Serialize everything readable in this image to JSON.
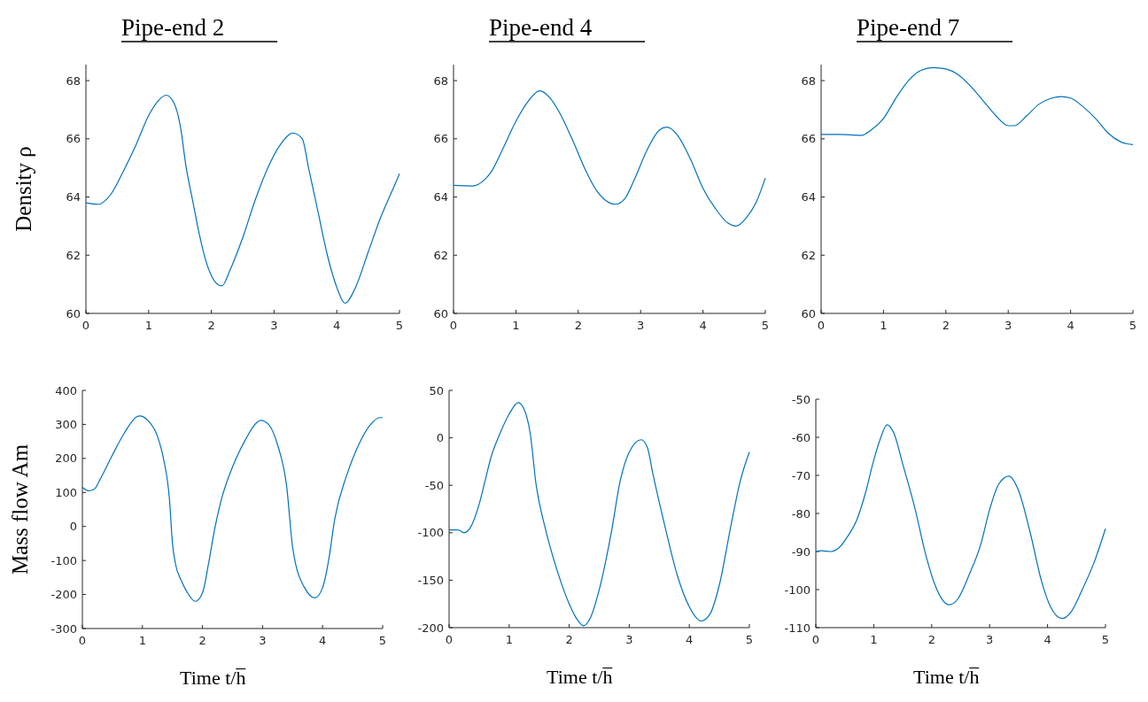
{
  "chart_data": [
    {
      "type": "line",
      "title": "Pipe-end 2",
      "ylabel": "Density ρ",
      "xlim": [
        0,
        5
      ],
      "xticks": [
        0,
        1,
        2,
        3,
        4,
        5
      ],
      "ylim": [
        60,
        68.55
      ],
      "yticks": [
        60,
        62,
        64,
        66,
        68
      ],
      "grid": false,
      "series": [
        {
          "color": "#0072bd",
          "x": [
            0,
            0.2,
            0.4,
            0.6,
            0.8,
            1.0,
            1.15,
            1.28,
            1.4,
            1.5,
            1.6,
            1.7,
            1.8,
            1.9,
            2.0,
            2.1,
            2.17,
            2.3,
            2.5,
            2.7,
            2.9,
            3.1,
            3.3,
            3.45,
            3.55,
            3.7,
            3.85,
            4.0,
            4.13,
            4.3,
            4.5,
            4.7,
            4.9,
            5.0
          ],
          "values": [
            63.8,
            63.75,
            64.1,
            64.9,
            65.8,
            66.8,
            67.3,
            67.5,
            67.25,
            66.5,
            65.0,
            63.9,
            62.8,
            61.9,
            61.3,
            61.0,
            60.95,
            61.5,
            62.6,
            63.9,
            65.0,
            65.8,
            66.2,
            66.0,
            65.0,
            63.5,
            62.0,
            60.9,
            60.35,
            60.9,
            62.1,
            63.3,
            64.3,
            64.8
          ]
        }
      ]
    },
    {
      "type": "line",
      "title": "Pipe-end 4",
      "xlim": [
        0,
        5
      ],
      "xticks": [
        0,
        1,
        2,
        3,
        4,
        5
      ],
      "ylim": [
        60,
        68.55
      ],
      "yticks": [
        60,
        62,
        64,
        66,
        68
      ],
      "grid": false,
      "series": [
        {
          "color": "#0072bd",
          "x": [
            0,
            0.3,
            0.5,
            0.6,
            0.8,
            1.0,
            1.2,
            1.38,
            1.55,
            1.7,
            1.9,
            2.1,
            2.3,
            2.5,
            2.6,
            2.75,
            2.9,
            3.1,
            3.3,
            3.42,
            3.6,
            3.8,
            4.0,
            4.2,
            4.4,
            4.53,
            4.7,
            4.85,
            5.0
          ],
          "values": [
            64.4,
            64.38,
            64.6,
            64.85,
            65.7,
            66.6,
            67.3,
            67.65,
            67.4,
            66.9,
            66.0,
            65.0,
            64.2,
            63.8,
            63.75,
            63.95,
            64.6,
            65.6,
            66.3,
            66.4,
            66.1,
            65.3,
            64.3,
            63.6,
            63.1,
            63.0,
            63.3,
            63.8,
            64.65
          ]
        }
      ]
    },
    {
      "type": "line",
      "title": "Pipe-end 7",
      "xlim": [
        0,
        5
      ],
      "xticks": [
        0,
        1,
        2,
        3,
        4,
        5
      ],
      "ylim": [
        60,
        68.55
      ],
      "yticks": [
        60,
        62,
        64,
        66,
        68
      ],
      "grid": false,
      "series": [
        {
          "color": "#0072bd",
          "x": [
            0,
            0.3,
            0.65,
            0.8,
            1.0,
            1.2,
            1.4,
            1.6,
            1.8,
            2.0,
            2.2,
            2.4,
            2.6,
            2.8,
            3.0,
            3.1,
            3.3,
            3.5,
            3.7,
            3.85,
            4.0,
            4.2,
            4.4,
            4.6,
            4.8,
            5.0
          ],
          "values": [
            66.15,
            66.15,
            66.12,
            66.3,
            66.7,
            67.4,
            68.0,
            68.35,
            68.45,
            68.4,
            68.2,
            67.8,
            67.3,
            66.8,
            66.45,
            66.45,
            66.8,
            67.2,
            67.4,
            67.45,
            67.4,
            67.1,
            66.7,
            66.2,
            65.9,
            65.8
          ]
        }
      ]
    },
    {
      "type": "line",
      "ylabel": "Mass flow Am",
      "xlabel": "Time t/h̅",
      "xlim": [
        0,
        5
      ],
      "xticks": [
        0,
        1,
        2,
        3,
        4,
        5
      ],
      "ylim": [
        -300,
        400
      ],
      "yticks": [
        -300,
        -200,
        -100,
        0,
        100,
        200,
        300,
        400
      ],
      "grid": false,
      "series": [
        {
          "color": "#0072bd",
          "x": [
            0,
            0.1,
            0.2,
            0.3,
            0.5,
            0.7,
            0.9,
            0.95,
            1.1,
            1.25,
            1.35,
            1.45,
            1.5,
            1.55,
            1.65,
            1.75,
            1.88,
            2.0,
            2.1,
            2.2,
            2.3,
            2.5,
            2.7,
            2.9,
            2.97,
            3.1,
            3.25,
            3.4,
            3.5,
            3.55,
            3.7,
            3.87,
            4.0,
            4.1,
            4.2,
            4.4,
            4.6,
            4.8,
            4.95,
            5.0
          ],
          "values": [
            115,
            105,
            110,
            140,
            210,
            275,
            322,
            325,
            310,
            265,
            200,
            80,
            -50,
            -110,
            -160,
            -195,
            -220,
            -195,
            -110,
            -10,
            70,
            175,
            250,
            305,
            312,
            300,
            240,
            120,
            -60,
            -110,
            -180,
            -210,
            -180,
            -100,
            20,
            150,
            240,
            300,
            320,
            320
          ]
        }
      ]
    },
    {
      "type": "line",
      "xlabel": "Time t/h̅",
      "xlim": [
        0,
        5
      ],
      "xticks": [
        0,
        1,
        2,
        3,
        4,
        5
      ],
      "ylim": [
        -200,
        50
      ],
      "yticks": [
        -200,
        -150,
        -100,
        -50,
        0,
        50
      ],
      "grid": false,
      "series": [
        {
          "color": "#0072bd",
          "x": [
            0,
            0.15,
            0.25,
            0.35,
            0.5,
            0.6,
            0.7,
            0.85,
            1.0,
            1.15,
            1.25,
            1.35,
            1.45,
            1.6,
            1.8,
            2.0,
            2.15,
            2.24,
            2.35,
            2.5,
            2.7,
            2.85,
            3.0,
            3.2,
            3.3,
            3.4,
            3.6,
            3.8,
            4.0,
            4.2,
            4.35,
            4.5,
            4.7,
            4.85,
            5.0
          ],
          "values": [
            -97,
            -97,
            -100,
            -95,
            -70,
            -45,
            -20,
            5,
            25,
            37,
            30,
            5,
            -50,
            -95,
            -140,
            -175,
            -193,
            -198,
            -190,
            -160,
            -100,
            -45,
            -15,
            -2,
            -10,
            -40,
            -95,
            -145,
            -178,
            -193,
            -185,
            -155,
            -90,
            -45,
            -15
          ]
        }
      ]
    },
    {
      "type": "line",
      "xlabel": "Time t/h̅",
      "xlim": [
        0,
        5
      ],
      "xticks": [
        0,
        1,
        2,
        3,
        4,
        5
      ],
      "ylim": [
        -110,
        -50
      ],
      "yticks": [
        -110,
        -100,
        -90,
        -80,
        -70,
        -60,
        -50
      ],
      "grid": false,
      "series": [
        {
          "color": "#0072bd",
          "x": [
            0,
            0.1,
            0.25,
            0.4,
            0.55,
            0.7,
            0.85,
            1.0,
            1.1,
            1.23,
            1.35,
            1.5,
            1.7,
            1.9,
            2.05,
            2.2,
            2.3,
            2.45,
            2.65,
            2.85,
            3.0,
            3.15,
            3.33,
            3.5,
            3.7,
            3.9,
            4.05,
            4.25,
            4.4,
            4.6,
            4.8,
            5.0
          ],
          "values": [
            -90,
            -89.8,
            -90,
            -89,
            -86,
            -82,
            -75,
            -66,
            -61,
            -56.7,
            -59,
            -67,
            -78,
            -91,
            -98.5,
            -103,
            -104,
            -102.5,
            -96,
            -88,
            -79,
            -72.5,
            -70.2,
            -74,
            -85,
            -98,
            -104.5,
            -107.6,
            -106,
            -100,
            -93,
            -84
          ]
        }
      ]
    }
  ]
}
